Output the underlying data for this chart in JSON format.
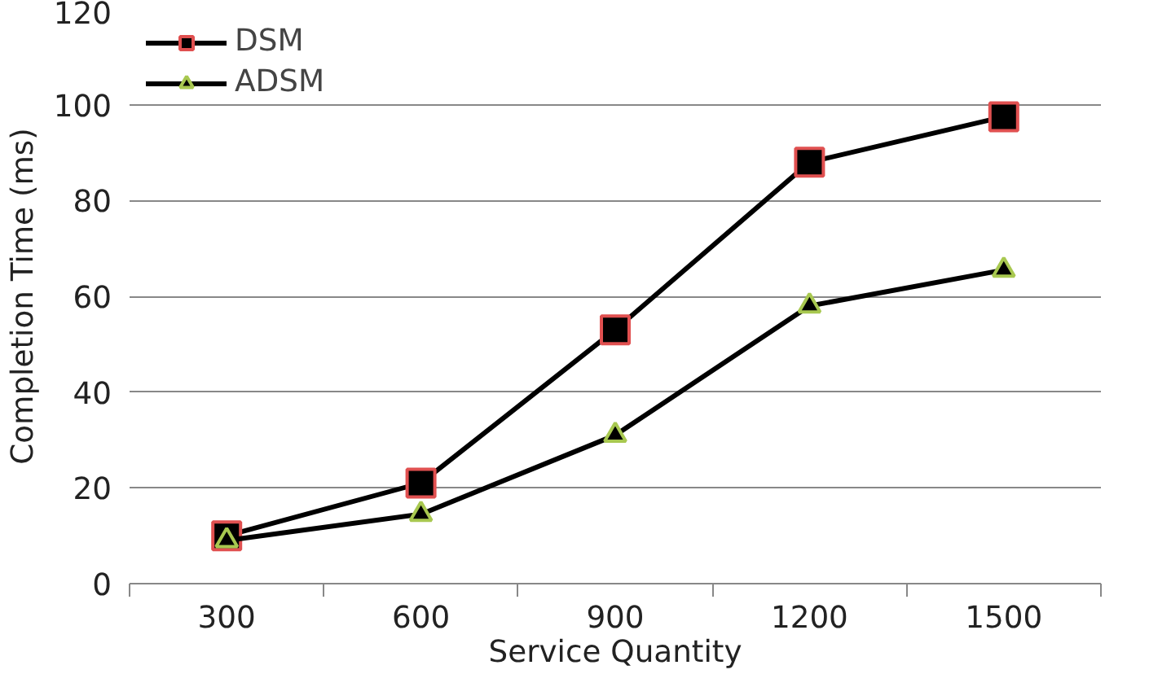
{
  "chart_data": {
    "type": "line",
    "xlabel": "Service Quantity",
    "ylabel": "Completion Time (ms)",
    "categories": [
      "300",
      "600",
      "900",
      "1200",
      "1500"
    ],
    "ylim": [
      0,
      120
    ],
    "yticks": [
      0,
      20,
      40,
      60,
      80,
      100,
      120
    ],
    "grid": "y",
    "legend": "top left",
    "series": [
      {
        "name": "DSM",
        "color": "#000000",
        "marker": "square",
        "values": [
          10,
          21,
          53,
          88,
          97.5
        ]
      },
      {
        "name": "ADSM",
        "color": "#000000",
        "marker": "triangle",
        "values": [
          9,
          14.5,
          31,
          58,
          65.5
        ]
      }
    ]
  }
}
